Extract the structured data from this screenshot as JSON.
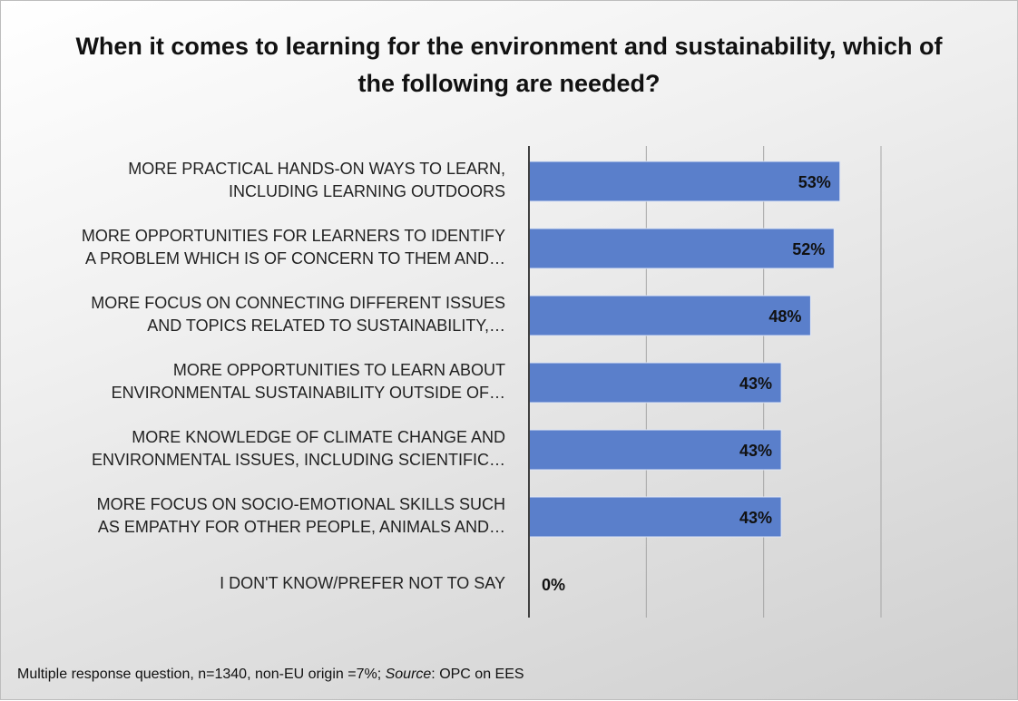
{
  "chart_data": {
    "type": "bar",
    "orientation": "horizontal",
    "title": "When it comes to learning for the environment and sustainability, which of the following are needed?",
    "categories": [
      [
        "MORE PRACTICAL HANDS-ON WAYS TO LEARN,",
        "INCLUDING LEARNING OUTDOORS"
      ],
      [
        "MORE OPPORTUNITIES FOR LEARNERS TO IDENTIFY",
        "A PROBLEM WHICH IS OF CONCERN TO THEM AND…"
      ],
      [
        "MORE FOCUS ON CONNECTING DIFFERENT ISSUES",
        "AND TOPICS RELATED TO SUSTAINABILITY,…"
      ],
      [
        "MORE OPPORTUNITIES TO LEARN ABOUT",
        "ENVIRONMENTAL SUSTAINABILITY OUTSIDE OF…"
      ],
      [
        "MORE KNOWLEDGE OF CLIMATE CHANGE AND",
        "ENVIRONMENTAL ISSUES, INCLUDING SCIENTIFIC…"
      ],
      [
        "MORE FOCUS ON SOCIO-EMOTIONAL SKILLS SUCH",
        "AS EMPATHY FOR OTHER PEOPLE, ANIMALS AND…"
      ],
      [
        "I DON'T KNOW/PREFER NOT TO SAY"
      ]
    ],
    "values": [
      53,
      52,
      48,
      43,
      43,
      43,
      0
    ],
    "data_labels": [
      "53%",
      "52%",
      "48%",
      "43%",
      "43%",
      "43%",
      "0%"
    ],
    "xlim": [
      0,
      60
    ],
    "gridlines": [
      20,
      40,
      60
    ],
    "grid": true,
    "bar_color": "#5a7fcb",
    "footnote": {
      "prefix": "Multiple response question, n=1340, non-EU origin =7%; ",
      "source_label": "Source",
      "suffix": ": OPC on EES"
    }
  }
}
